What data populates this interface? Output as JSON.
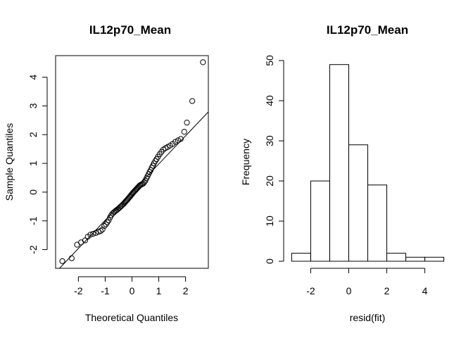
{
  "chart_data": [
    {
      "type": "scatter",
      "title": "IL12p70_Mean",
      "xlabel": "Theoretical Quantiles",
      "ylabel": "Sample Quantiles",
      "xlim": [
        -2.85,
        2.85
      ],
      "ylim": [
        -2.65,
        4.75
      ],
      "x_ticks": [
        -2,
        -1,
        0,
        1,
        2
      ],
      "y_ticks": [
        -2,
        -1,
        0,
        1,
        2,
        3,
        4
      ],
      "reference_line": {
        "intercept": 0.0,
        "slope": 0.98
      },
      "points": [
        [
          -2.6,
          -2.4
        ],
        [
          -2.25,
          -2.3
        ],
        [
          -2.05,
          -1.83
        ],
        [
          -1.9,
          -1.75
        ],
        [
          -1.75,
          -1.68
        ],
        [
          -1.65,
          -1.55
        ],
        [
          -1.55,
          -1.48
        ],
        [
          -1.45,
          -1.45
        ],
        [
          -1.35,
          -1.42
        ],
        [
          -1.25,
          -1.38
        ],
        [
          -1.17,
          -1.35
        ],
        [
          -1.1,
          -1.3
        ],
        [
          -1.03,
          -1.18
        ],
        [
          -0.97,
          -1.12
        ],
        [
          -0.92,
          -1.05
        ],
        [
          -0.87,
          -0.98
        ],
        [
          -0.82,
          -0.88
        ],
        [
          -0.77,
          -0.8
        ],
        [
          -0.72,
          -0.74
        ],
        [
          -0.67,
          -0.7
        ],
        [
          -0.62,
          -0.66
        ],
        [
          -0.58,
          -0.63
        ],
        [
          -0.54,
          -0.6
        ],
        [
          -0.5,
          -0.57
        ],
        [
          -0.46,
          -0.54
        ],
        [
          -0.42,
          -0.5
        ],
        [
          -0.38,
          -0.47
        ],
        [
          -0.34,
          -0.43
        ],
        [
          -0.3,
          -0.4
        ],
        [
          -0.27,
          -0.36
        ],
        [
          -0.24,
          -0.33
        ],
        [
          -0.21,
          -0.3
        ],
        [
          -0.18,
          -0.27
        ],
        [
          -0.15,
          -0.24
        ],
        [
          -0.12,
          -0.2
        ],
        [
          -0.09,
          -0.17
        ],
        [
          -0.06,
          -0.14
        ],
        [
          -0.03,
          -0.1
        ],
        [
          0.0,
          -0.07
        ],
        [
          0.03,
          -0.03
        ],
        [
          0.06,
          0.0
        ],
        [
          0.09,
          0.03
        ],
        [
          0.12,
          0.06
        ],
        [
          0.15,
          0.09
        ],
        [
          0.18,
          0.12
        ],
        [
          0.21,
          0.15
        ],
        [
          0.24,
          0.18
        ],
        [
          0.27,
          0.21
        ],
        [
          0.3,
          0.24
        ],
        [
          0.34,
          0.26
        ],
        [
          0.38,
          0.28
        ],
        [
          0.42,
          0.3
        ],
        [
          0.46,
          0.35
        ],
        [
          0.5,
          0.4
        ],
        [
          0.54,
          0.48
        ],
        [
          0.58,
          0.55
        ],
        [
          0.62,
          0.63
        ],
        [
          0.66,
          0.7
        ],
        [
          0.7,
          0.77
        ],
        [
          0.74,
          0.85
        ],
        [
          0.78,
          0.92
        ],
        [
          0.82,
          1.0
        ],
        [
          0.87,
          1.08
        ],
        [
          0.92,
          1.15
        ],
        [
          0.97,
          1.23
        ],
        [
          1.03,
          1.32
        ],
        [
          1.1,
          1.4
        ],
        [
          1.17,
          1.48
        ],
        [
          1.25,
          1.53
        ],
        [
          1.33,
          1.57
        ],
        [
          1.42,
          1.62
        ],
        [
          1.52,
          1.68
        ],
        [
          1.62,
          1.75
        ],
        [
          1.72,
          1.8
        ],
        [
          1.82,
          1.85
        ],
        [
          1.95,
          2.1
        ],
        [
          2.05,
          2.42
        ],
        [
          2.25,
          3.17
        ],
        [
          2.65,
          4.52
        ]
      ]
    },
    {
      "type": "bar",
      "title": "IL12p70_Mean",
      "xlabel": "resid(fit)",
      "ylabel": "Frequency",
      "xlim": [
        -3.2,
        5.2
      ],
      "ylim": [
        0,
        50
      ],
      "x_ticks": [
        -2,
        0,
        2,
        4
      ],
      "y_ticks": [
        0,
        10,
        20,
        30,
        40,
        50
      ],
      "bins": [
        {
          "from": -3,
          "to": -2,
          "count": 2
        },
        {
          "from": -2,
          "to": -1,
          "count": 20
        },
        {
          "from": -1,
          "to": 0,
          "count": 49
        },
        {
          "from": 0,
          "to": 1,
          "count": 29
        },
        {
          "from": 1,
          "to": 2,
          "count": 19
        },
        {
          "from": 2,
          "to": 3,
          "count": 2
        },
        {
          "from": 3,
          "to": 4,
          "count": 1
        },
        {
          "from": 4,
          "to": 5,
          "count": 1
        }
      ]
    }
  ]
}
